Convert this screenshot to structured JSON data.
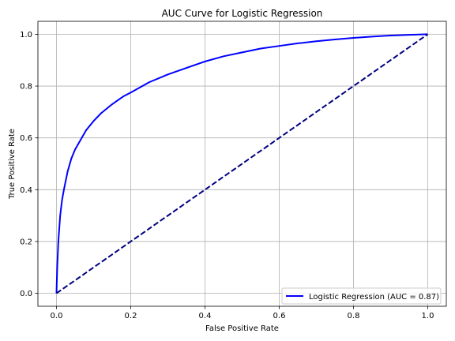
{
  "chart_data": {
    "type": "line",
    "title": "AUC Curve for Logistic Regression",
    "xlabel": "False Positive Rate",
    "ylabel": "True Positive Rate",
    "xlim": [
      -0.05,
      1.05
    ],
    "ylim": [
      -0.05,
      1.05
    ],
    "xticks": [
      0.0,
      0.2,
      0.4,
      0.6,
      0.8,
      1.0
    ],
    "yticks": [
      0.0,
      0.2,
      0.4,
      0.6,
      0.8,
      1.0
    ],
    "xtick_labels": [
      "0.0",
      "0.2",
      "0.4",
      "0.6",
      "0.8",
      "1.0"
    ],
    "ytick_labels": [
      "0.0",
      "0.2",
      "0.4",
      "0.6",
      "0.8",
      "1.0"
    ],
    "grid": true,
    "legend_position": "lower-right",
    "series": [
      {
        "name": "Logistic Regression (AUC = 0.87)",
        "color": "#0000ff",
        "style": "solid",
        "x": [
          0.0,
          0.002,
          0.005,
          0.01,
          0.015,
          0.02,
          0.03,
          0.04,
          0.05,
          0.06,
          0.08,
          0.1,
          0.12,
          0.15,
          0.18,
          0.2,
          0.25,
          0.3,
          0.35,
          0.4,
          0.45,
          0.5,
          0.55,
          0.6,
          0.65,
          0.7,
          0.75,
          0.8,
          0.85,
          0.9,
          0.95,
          1.0
        ],
        "y": [
          0.0,
          0.1,
          0.2,
          0.3,
          0.36,
          0.4,
          0.47,
          0.52,
          0.555,
          0.58,
          0.63,
          0.665,
          0.695,
          0.73,
          0.76,
          0.775,
          0.815,
          0.845,
          0.87,
          0.895,
          0.915,
          0.93,
          0.945,
          0.955,
          0.965,
          0.973,
          0.98,
          0.986,
          0.991,
          0.995,
          0.998,
          1.0
        ]
      },
      {
        "name": "",
        "color": "#000080",
        "style": "dashed",
        "x": [
          0.0,
          1.0
        ],
        "y": [
          0.0,
          1.0
        ]
      }
    ]
  }
}
